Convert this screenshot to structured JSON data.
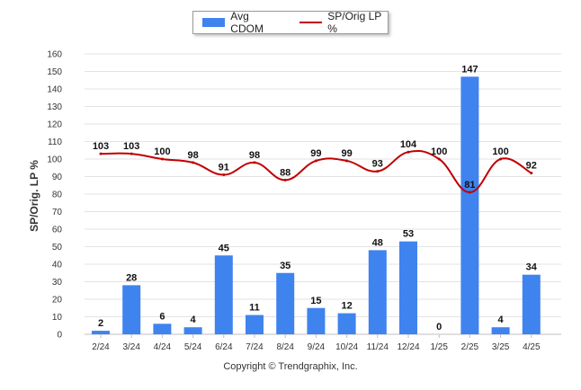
{
  "legend": {
    "bar_label": "Avg CDOM",
    "line_label": "SP/Orig LP %"
  },
  "footer": {
    "copyright": "Copyright © Trendgraphix, Inc."
  },
  "colors": {
    "bar": "#3f83ef",
    "line": "#c00000",
    "grid": "#e3e3e3"
  },
  "chart_data": {
    "type": "bar",
    "title": "",
    "ylabel": "SP/Orig. LP %",
    "ylim": [
      0,
      160
    ],
    "yticks": [
      0,
      10,
      20,
      30,
      40,
      50,
      60,
      70,
      80,
      90,
      100,
      110,
      120,
      130,
      140,
      150,
      160
    ],
    "categories": [
      "2/24",
      "3/24",
      "4/24",
      "5/24",
      "6/24",
      "7/24",
      "8/24",
      "9/24",
      "10/24",
      "11/24",
      "12/24",
      "1/25",
      "2/25",
      "3/25",
      "4/25"
    ],
    "series": [
      {
        "name": "Avg CDOM",
        "kind": "bar",
        "values": [
          2,
          28,
          6,
          4,
          45,
          11,
          35,
          15,
          12,
          48,
          53,
          0,
          147,
          4,
          34
        ]
      },
      {
        "name": "SP/Orig LP %",
        "kind": "line",
        "values": [
          103,
          103,
          100,
          98,
          91,
          98,
          88,
          99,
          99,
          93,
          104,
          100,
          81,
          100,
          92
        ]
      }
    ]
  }
}
